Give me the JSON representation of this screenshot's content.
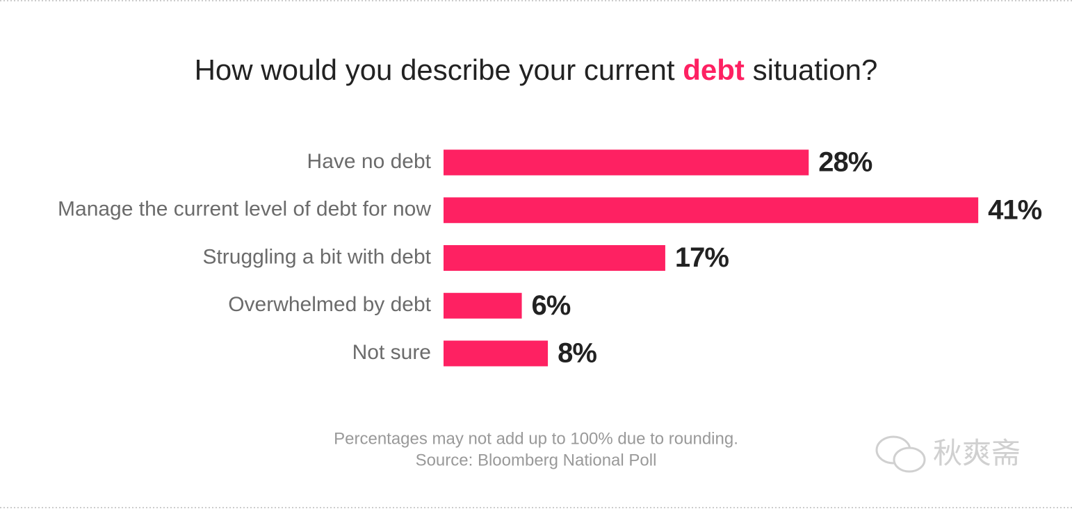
{
  "chart_data": {
    "type": "bar",
    "orientation": "horizontal",
    "title": [
      "How would you describe your current ",
      "debt",
      " situation?"
    ],
    "title_highlight_color": "#fe2162",
    "categories": [
      "Have no debt",
      "Manage the current level of debt for now",
      "Struggling a bit with debt",
      "Overwhelmed by debt",
      "Not sure"
    ],
    "values": [
      28,
      41,
      17,
      6,
      8
    ],
    "value_labels": [
      "28%",
      "41%",
      "17%",
      "6%",
      "8%"
    ],
    "color": "#fe2162",
    "notes": [
      "Percentages may not add up to 100% due to rounding.",
      "Source: Bloomberg National Poll"
    ],
    "watermark": "秋爽斋"
  }
}
